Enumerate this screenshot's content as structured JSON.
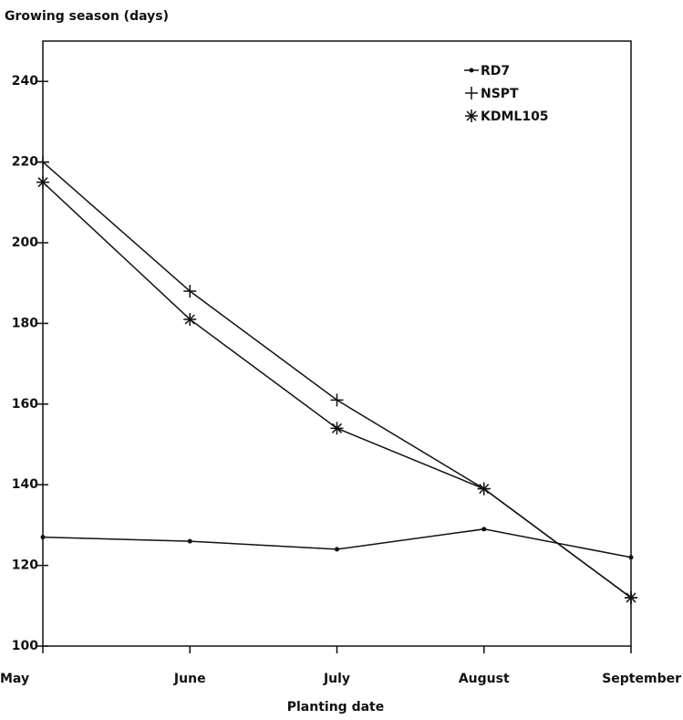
{
  "chart_data": {
    "type": "line",
    "y_label": "Growing season (days)",
    "x_label": "Planting date",
    "categories": [
      "May",
      "June",
      "July",
      "August",
      "September"
    ],
    "series": [
      {
        "name": "RD7",
        "color": "#111111",
        "marker": "dot",
        "values": [
          127,
          126,
          124,
          129,
          122
        ]
      },
      {
        "name": "NSPT",
        "color": "#111111",
        "marker": "plus",
        "values": [
          220,
          188,
          161,
          139,
          112
        ]
      },
      {
        "name": "KDML105",
        "color": "#111111",
        "marker": "star",
        "values": [
          215,
          181,
          154,
          139,
          112
        ]
      }
    ],
    "ylim": [
      100,
      250
    ],
    "yticks": [
      100,
      120,
      140,
      160,
      180,
      200,
      220,
      240
    ],
    "legend": "top-right"
  }
}
